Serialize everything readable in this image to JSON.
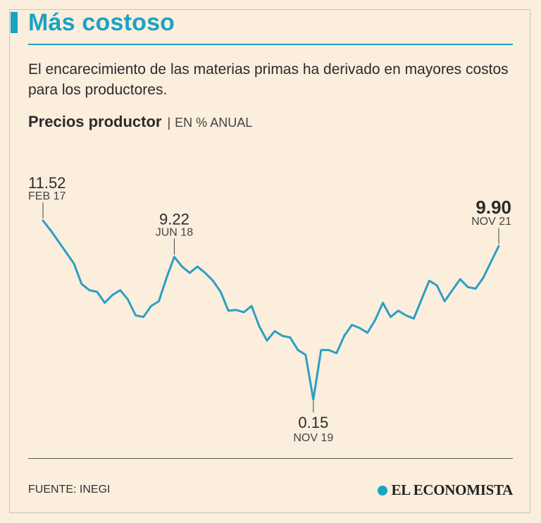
{
  "header": {
    "title": "Más costoso",
    "subtitle": "El encarecimiento de las materias primas ha derivado en mayores costos para los productores."
  },
  "chart_header": {
    "title": "Precios productor",
    "separator": "|",
    "unit": "EN % ANUAL"
  },
  "footer": {
    "source": "FUENTE: INEGI",
    "brand": "EL ECONOMISTA"
  },
  "colors": {
    "accent": "#1aa3c4",
    "line": "#2b9fc4",
    "background": "#fbeedd",
    "text": "#2b2b2b"
  },
  "chart_data": {
    "type": "line",
    "title": "Precios productor",
    "unit": "EN % ANUAL",
    "xlabel": "",
    "ylabel": "",
    "ylim": [
      0,
      12
    ],
    "grid": false,
    "series": [
      {
        "name": "Precios productor",
        "values": [
          11.52,
          10.9,
          10.2,
          9.5,
          8.8,
          7.5,
          7.1,
          7.0,
          6.3,
          6.8,
          7.1,
          6.5,
          5.5,
          5.4,
          6.1,
          6.4,
          7.9,
          9.22,
          8.6,
          8.2,
          8.6,
          8.2,
          7.7,
          7.0,
          5.8,
          5.85,
          5.7,
          6.1,
          4.8,
          3.9,
          4.5,
          4.2,
          4.1,
          3.3,
          3.0,
          0.15,
          3.3,
          3.3,
          3.1,
          4.2,
          4.9,
          4.7,
          4.4,
          5.2,
          6.3,
          5.4,
          5.8,
          5.5,
          5.3,
          6.5,
          7.7,
          7.4,
          6.4,
          7.1,
          7.8,
          7.3,
          7.2,
          7.9,
          8.9,
          9.9
        ]
      }
    ],
    "annotations": [
      {
        "label": "FEB 17",
        "value": 11.52,
        "value_text": "11.52",
        "index": 0,
        "emphasis": false
      },
      {
        "label": "JUN 18",
        "value": 9.22,
        "value_text": "9.22",
        "index": 17,
        "emphasis": false
      },
      {
        "label": "NOV 19",
        "value": 0.15,
        "value_text": "0.15",
        "index": 35,
        "emphasis": false
      },
      {
        "label": "NOV 21",
        "value": 9.9,
        "value_text": "9.90",
        "index": 59,
        "emphasis": true
      }
    ]
  }
}
